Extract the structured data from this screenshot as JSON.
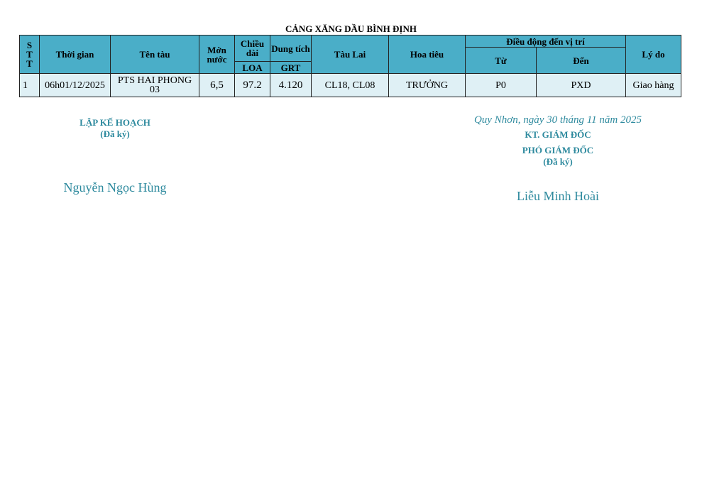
{
  "title": "CẢNG XĂNG DẦU BÌNH ĐỊNH",
  "headers": {
    "stt": "S\nT\nT",
    "time": "Thời gian",
    "ship": "Tên tàu",
    "draft": "Mớn nước",
    "length": "Chiều dài",
    "loa": "LOA",
    "capacity": "Dung tích",
    "grt": "GRT",
    "tug": "Tàu Lai",
    "pilot": "Hoa tiêu",
    "move": "Điều động đến vị trí",
    "from": "Từ",
    "to": "Đến",
    "reason": "Lý do"
  },
  "rows": [
    {
      "stt": "1",
      "time": "06h01/12/2025",
      "ship": "PTS HAI PHONG 03",
      "draft": "6,5",
      "loa": "97.2",
      "grt": "4.120",
      "tug": "CL18, CL08",
      "pilot": "TRƯỞNG",
      "from": "P0",
      "to": "PXD",
      "reason": "Giao hàng"
    }
  ],
  "left_sig": {
    "role": "LẬP KẾ HOẠCH",
    "signed": "(Đã ký)",
    "name": "Nguyễn Ngọc Hùng"
  },
  "right_sig": {
    "place_date": "Quy Nhơn, ngày 30 tháng 11 năm 2025",
    "role1": "KT. GIÁM ĐỐC",
    "role2": "PHÓ GIÁM ĐỐC",
    "signed": "(Đã ký)",
    "name": "Liễu Minh Hoài"
  }
}
